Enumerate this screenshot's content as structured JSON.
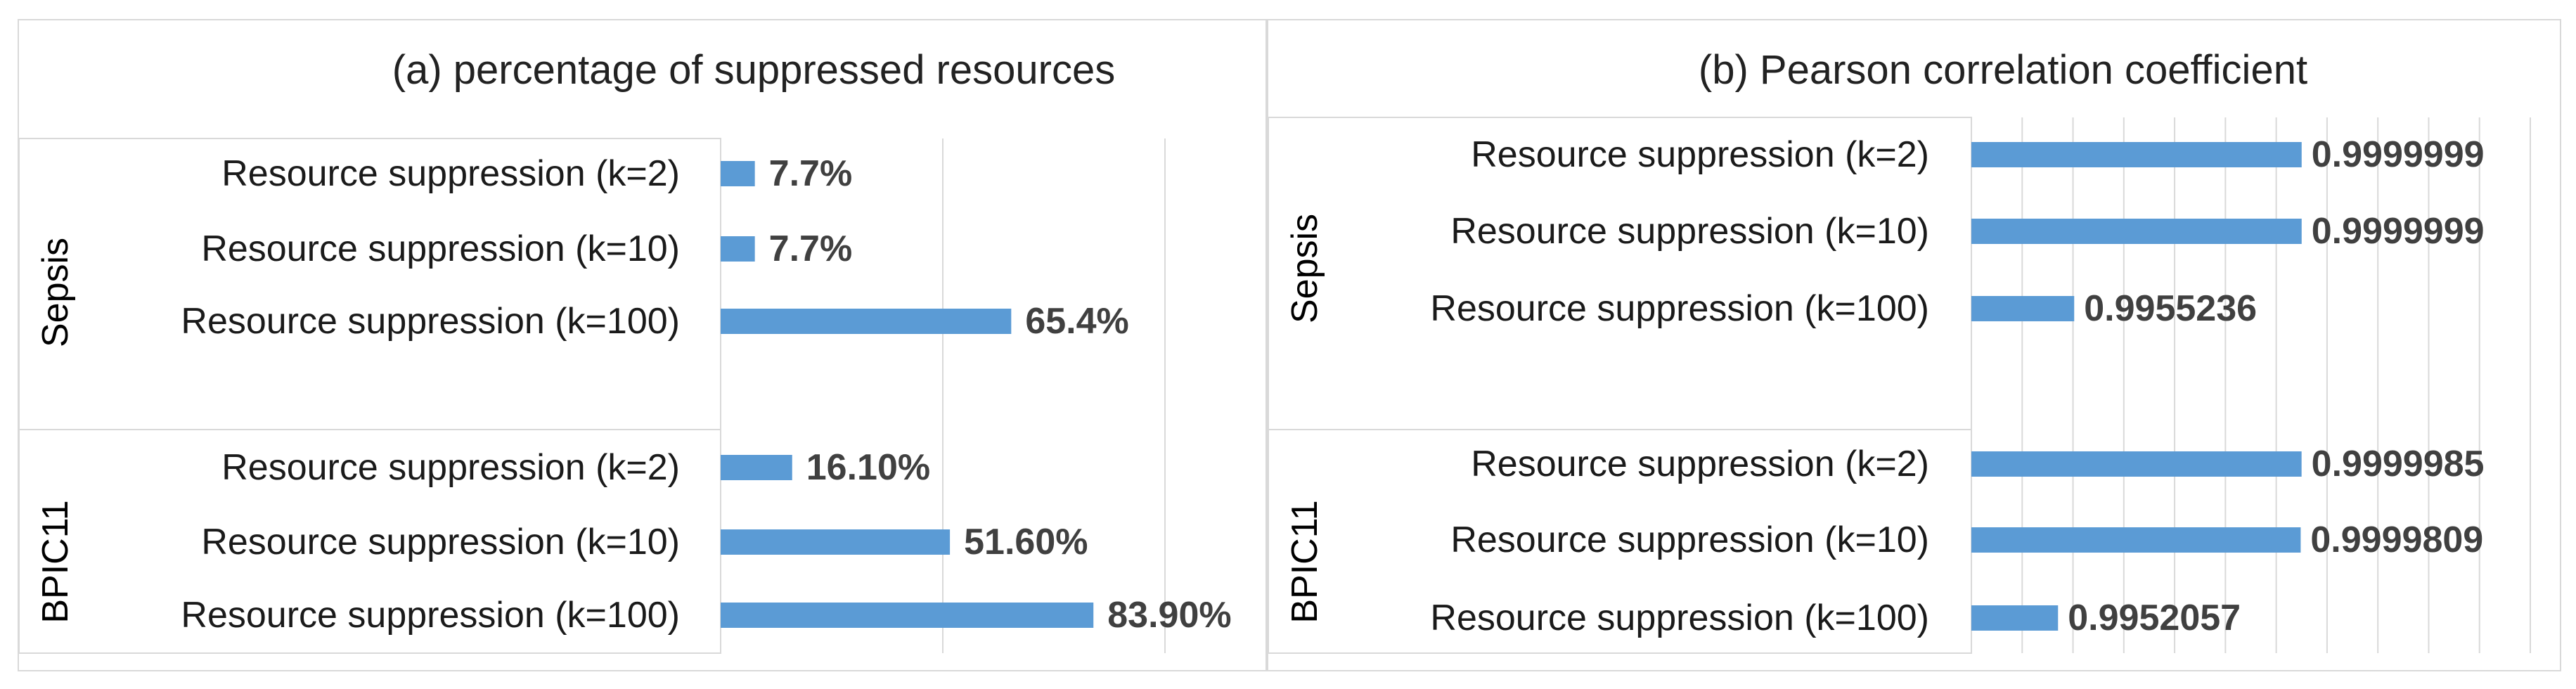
{
  "colors": {
    "bar": "#5b9bd5",
    "grid": "#d9d9d9",
    "data_label": "#404040"
  },
  "chart_data": [
    {
      "type": "bar",
      "orientation": "horizontal",
      "title": "(a) percentage of suppressed resources",
      "groups": [
        {
          "name": "Sepsis",
          "categories": [
            "Resource suppression (k=2)",
            "Resource suppression (k=10)",
            "Resource suppression (k=100)"
          ],
          "values": [
            7.7,
            7.7,
            65.4
          ],
          "labels": [
            "7.7%",
            "7.7%",
            "65.4%"
          ]
        },
        {
          "name": "BPIC11",
          "categories": [
            "Resource suppression (k=2)",
            "Resource suppression (k=10)",
            "Resource suppression (k=100)"
          ],
          "values": [
            16.1,
            51.6,
            83.9
          ],
          "labels": [
            "16.10%",
            "51.60%",
            "83.90%"
          ]
        }
      ],
      "xlim": [
        0,
        100
      ],
      "xtick_step": 50,
      "grid": true,
      "legend": "none"
    },
    {
      "type": "bar",
      "orientation": "horizontal",
      "title": "(b) Pearson correlation coefficient",
      "groups": [
        {
          "name": "Sepsis",
          "categories": [
            "Resource suppression (k=2)",
            "Resource suppression (k=10)",
            "Resource suppression (k=100)"
          ],
          "values": [
            0.9999999,
            0.9999999,
            0.9955236
          ],
          "labels": [
            "0.9999999",
            "0.9999999",
            "0.9955236"
          ]
        },
        {
          "name": "BPIC11",
          "categories": [
            "Resource suppression (k=2)",
            "Resource suppression (k=10)",
            "Resource suppression (k=100)"
          ],
          "values": [
            0.9999985,
            0.9999809,
            0.9952057
          ],
          "labels": [
            "0.9999985",
            "0.9999809",
            "0.9952057"
          ]
        }
      ],
      "xlim": [
        0.9935,
        1.0045
      ],
      "xtick_step": 0.001,
      "grid": true,
      "legend": "none"
    }
  ]
}
